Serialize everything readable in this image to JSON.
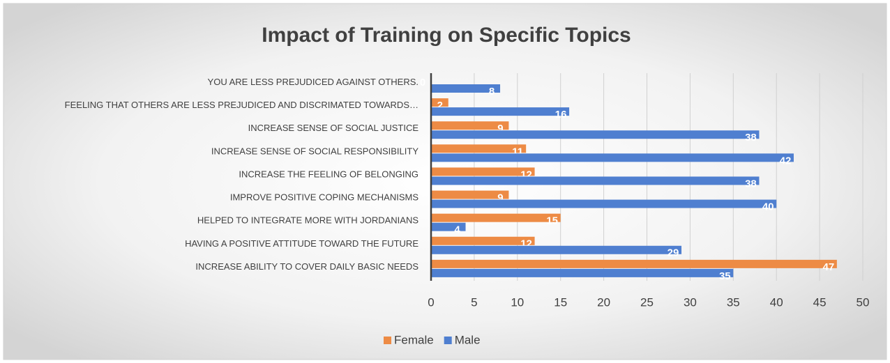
{
  "chart_data": {
    "type": "hbar",
    "title": "Impact of Training on Specific Topics",
    "categories": [
      "YOU ARE LESS PREJUDICED AGAINST OTHERS.",
      "FEELING THAT OTHERS ARE LESS PREJUDICED AND DISCRIMATED TOWARDS…",
      "INCREASE SENSE OF SOCIAL JUSTICE",
      "INCREASE SENSE OF SOCIAL RESPONSIBILITY",
      "INCREASE THE FEELING OF BELONGING",
      "IMPROVE POSITIVE COPING MECHANISMS",
      "HELPED TO INTEGRATE MORE WITH JORDANIANS",
      "HAVING A POSITIVE ATTITUDE TOWARD THE FUTURE",
      "INCREASE ABILITY TO COVER DAILY BASIC NEEDS"
    ],
    "series": [
      {
        "name": "Female",
        "color": "#ed8b45",
        "values": [
          0,
          2,
          9,
          11,
          12,
          9,
          15,
          12,
          47
        ]
      },
      {
        "name": "Male",
        "color": "#4f7fd0",
        "values": [
          8,
          16,
          38,
          42,
          38,
          40,
          4,
          29,
          35
        ]
      }
    ],
    "xlim": [
      0,
      50
    ],
    "xticks": [
      0,
      5,
      10,
      15,
      20,
      25,
      30,
      35,
      40,
      45,
      50
    ],
    "grid": true,
    "legend": "bottom"
  }
}
